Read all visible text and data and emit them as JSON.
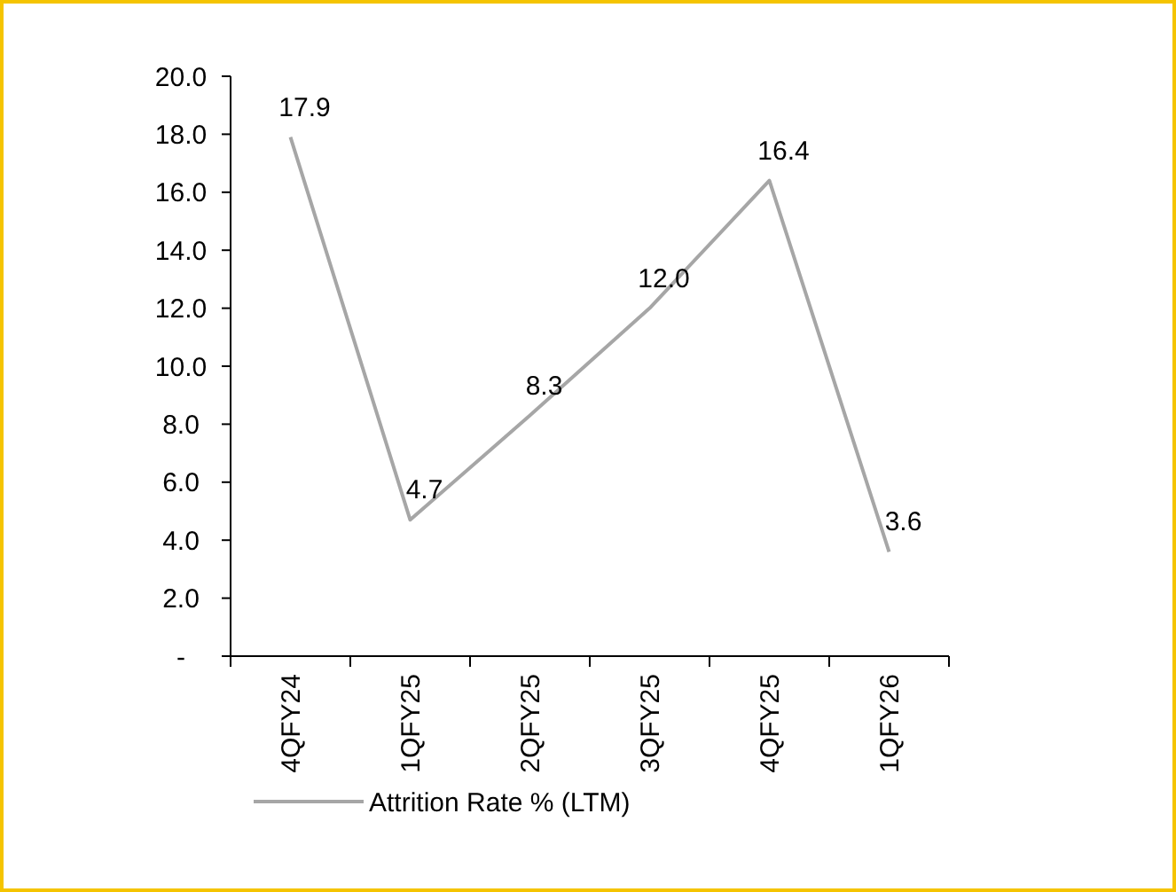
{
  "chart_data": {
    "type": "line",
    "categories": [
      "4QFY24",
      "1QFY25",
      "2QFY25",
      "3QFY25",
      "4QFY25",
      "1QFY26"
    ],
    "series": [
      {
        "name": "Attrition Rate % (LTM)",
        "color": "#a6a6a6",
        "values": [
          17.9,
          4.7,
          8.3,
          12.0,
          16.4,
          3.6
        ],
        "value_labels": [
          "17.9",
          "4.7",
          "8.3",
          "12.0",
          "16.4",
          "3.6"
        ]
      }
    ],
    "ylim": [
      0,
      20
    ],
    "yticks": [
      {
        "value": 0,
        "label": "-"
      },
      {
        "value": 2,
        "label": "2.0"
      },
      {
        "value": 4,
        "label": "4.0"
      },
      {
        "value": 6,
        "label": "6.0"
      },
      {
        "value": 8,
        "label": "8.0"
      },
      {
        "value": 10,
        "label": "10.0"
      },
      {
        "value": 12,
        "label": "12.0"
      },
      {
        "value": 14,
        "label": "14.0"
      },
      {
        "value": 16,
        "label": "16.0"
      },
      {
        "value": 18,
        "label": "18.0"
      },
      {
        "value": 20,
        "label": "20.0"
      }
    ],
    "grid": false,
    "legend": "bottom",
    "marker": "none",
    "line_style": "solid"
  }
}
